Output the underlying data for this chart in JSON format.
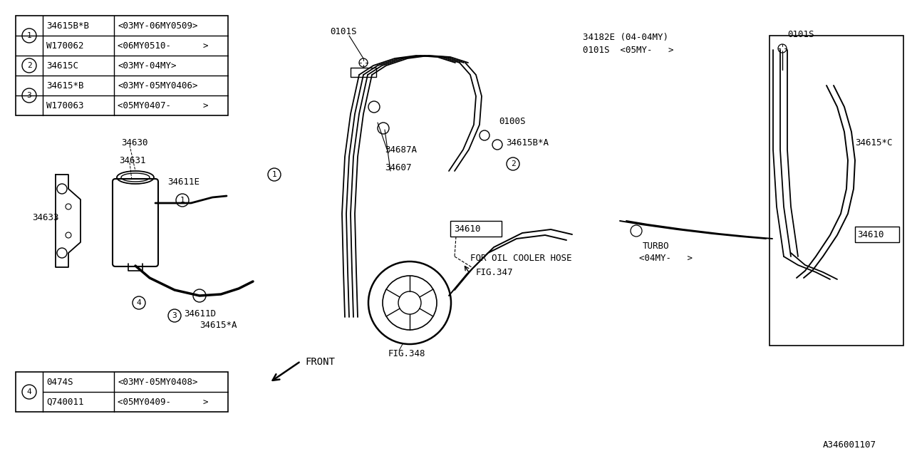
{
  "bg_color": "#ffffff",
  "line_color": "#000000",
  "font_size_label": 9,
  "font_size_table": 9,
  "diagram_id": "A346001107",
  "table1_rows": [
    [
      "1",
      "34615B*B",
      "<03MY-06MY0509>"
    ],
    [
      "1",
      "W170062",
      "<06MY0510-      >"
    ],
    [
      "2",
      "34615C",
      "<03MY-04MY>"
    ],
    [
      "3",
      "34615*B",
      "<03MY-05MY0406>"
    ],
    [
      "3",
      "W170063",
      "<05MY0407-      >"
    ]
  ],
  "table2_rows": [
    [
      "4",
      "0474S",
      "<03MY-05MY0408>"
    ],
    [
      "4",
      "Q740011",
      "<05MY0409-      >"
    ]
  ]
}
